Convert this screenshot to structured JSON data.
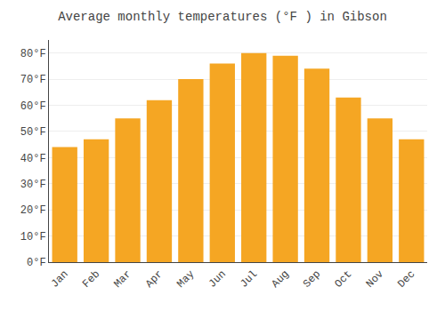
{
  "chart_data": {
    "type": "bar",
    "title": "Average monthly temperatures (°F ) in Gibson",
    "categories": [
      "Jan",
      "Feb",
      "Mar",
      "Apr",
      "May",
      "Jun",
      "Jul",
      "Aug",
      "Sep",
      "Oct",
      "Nov",
      "Dec"
    ],
    "values": [
      44,
      47,
      55,
      62,
      70,
      76,
      80,
      79,
      74,
      63,
      55,
      47
    ],
    "color": "#F5A623",
    "ylim": [
      0,
      85
    ],
    "yticks": [
      {
        "value": 0,
        "label": "0°F"
      },
      {
        "value": 10,
        "label": "10°F"
      },
      {
        "value": 20,
        "label": "20°F"
      },
      {
        "value": 30,
        "label": "30°F"
      },
      {
        "value": 40,
        "label": "40°F"
      },
      {
        "value": 50,
        "label": "50°F"
      },
      {
        "value": 60,
        "label": "60°F"
      },
      {
        "value": 70,
        "label": "70°F"
      },
      {
        "value": 80,
        "label": "80°F"
      }
    ],
    "grid": true
  }
}
